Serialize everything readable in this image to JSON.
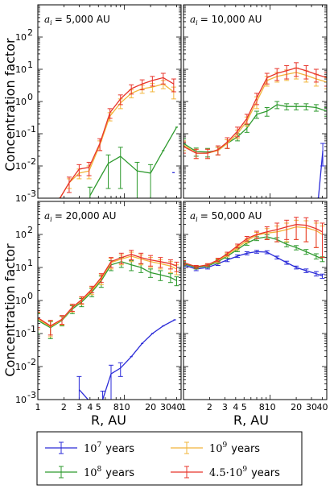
{
  "figure": {
    "ylabel": "Concentration factor",
    "xlabel": "R, AU"
  },
  "legend": {
    "placement": "bottom",
    "entries": [
      {
        "mantissa": "",
        "exponent": "7",
        "suffix": "years",
        "color": "#2b2bd8"
      },
      {
        "mantissa": "",
        "exponent": "9",
        "suffix": "years",
        "color": "#f2b53a"
      },
      {
        "mantissa": "",
        "exponent": "8",
        "suffix": "years",
        "color": "#2e9a2e"
      },
      {
        "mantissa": "4.5·",
        "exponent": "9",
        "suffix": "years",
        "color": "#e8342a"
      }
    ]
  },
  "colors": {
    "1e7": "#2b2bd8",
    "1e8": "#2e9a2e",
    "1e9": "#f2b53a",
    "4.5e9": "#e8342a"
  },
  "chart_data": [
    {
      "type": "line",
      "panel_label": "= 5,000 AU",
      "xscale": "log",
      "yscale": "log",
      "xlim": [
        1,
        45
      ],
      "ylim": [
        0.001,
        1000
      ],
      "xticks": [],
      "yticks": [
        "10^-3",
        "10^-2",
        "10^-1",
        "10^0",
        "10^1",
        "10^2"
      ],
      "ylabel": "Concentration factor",
      "xlabel": "",
      "series": [
        {
          "name": "10^7 years",
          "color": "#2b2bd8",
          "x": [
            36.8
          ],
          "y": [
            0.0062
          ],
          "err": [
            0.0
          ]
        },
        {
          "name": "10^8 years",
          "color": "#2e9a2e",
          "x": [
            4.0,
            6.5,
            9.0,
            14.0,
            20.0,
            28.0,
            40.0
          ],
          "y": [
            0.0012,
            0.012,
            0.02,
            0.007,
            0.006,
            0.03,
            0.16
          ],
          "err": [
            0.001,
            0.01,
            0.018,
            0.006,
            0.005,
            0.0,
            0.0
          ]
        },
        {
          "name": "10^9 years",
          "color": "#f2b53a",
          "x": [
            1.8,
            2.3,
            3.0,
            3.9,
            5.2,
            6.8,
            9.0,
            12.0,
            16.0,
            21.0,
            28.0,
            37.0
          ],
          "y": [
            0.001,
            0.003,
            0.006,
            0.007,
            0.045,
            0.35,
            0.9,
            1.8,
            2.5,
            2.8,
            3.5,
            2.0
          ],
          "err": [
            0.0,
            0.001,
            0.002,
            0.003,
            0.015,
            0.1,
            0.3,
            0.5,
            0.7,
            0.8,
            1.0,
            0.8
          ]
        },
        {
          "name": "4.5·10^9 years",
          "color": "#e8342a",
          "x": [
            1.8,
            2.3,
            3.0,
            3.9,
            5.2,
            6.8,
            9.0,
            12.0,
            16.0,
            21.0,
            28.0,
            37.0
          ],
          "y": [
            0.001,
            0.003,
            0.008,
            0.009,
            0.05,
            0.45,
            1.2,
            2.5,
            3.5,
            4.5,
            5.5,
            3.5
          ],
          "err": [
            0.0,
            0.0015,
            0.003,
            0.004,
            0.02,
            0.15,
            0.4,
            0.8,
            1.2,
            1.5,
            2.0,
            1.5
          ]
        }
      ]
    },
    {
      "type": "line",
      "panel_label": "= 10,000 AU",
      "xscale": "log",
      "yscale": "log",
      "xlim": [
        1,
        45
      ],
      "ylim": [
        0.001,
        1000
      ],
      "xticks": [],
      "yticks": [],
      "ylabel": "",
      "xlabel": "",
      "series": [
        {
          "name": "10^7 years",
          "color": "#2b2bd8",
          "x": [
            36.0,
            40.5
          ],
          "y": [
            0.001,
            0.03
          ],
          "err": [
            0.0,
            0.02
          ]
        },
        {
          "name": "10^8 years",
          "color": "#2e9a2e",
          "x": [
            1.0,
            1.4,
            1.9,
            2.5,
            3.2,
            4.2,
            5.4,
            7.0,
            9.2,
            12.0,
            15.5,
            20.0,
            26.0,
            34.0,
            45.0
          ],
          "y": [
            0.05,
            0.028,
            0.027,
            0.03,
            0.05,
            0.08,
            0.15,
            0.4,
            0.5,
            0.8,
            0.7,
            0.7,
            0.7,
            0.65,
            0.5
          ],
          "err": [
            0.02,
            0.008,
            0.008,
            0.008,
            0.015,
            0.02,
            0.04,
            0.1,
            0.15,
            0.2,
            0.15,
            0.15,
            0.15,
            0.15,
            0.15
          ]
        },
        {
          "name": "10^9 years",
          "color": "#f2b53a",
          "x": [
            1.0,
            1.4,
            1.9,
            2.5,
            3.2,
            4.2,
            5.4,
            7.0,
            9.2,
            12.0,
            15.5,
            20.0,
            26.0,
            34.0,
            45.0
          ],
          "y": [
            0.045,
            0.025,
            0.025,
            0.03,
            0.05,
            0.1,
            0.25,
            1.0,
            4.5,
            6.0,
            7.0,
            8.0,
            6.5,
            5.0,
            4.0
          ],
          "err": [
            0.015,
            0.008,
            0.008,
            0.008,
            0.015,
            0.03,
            0.08,
            0.4,
            1.5,
            2.0,
            2.5,
            3.0,
            2.5,
            2.0,
            1.5
          ]
        },
        {
          "name": "4.5·10^9 years",
          "color": "#e8342a",
          "x": [
            1.0,
            1.4,
            1.9,
            2.5,
            3.2,
            4.2,
            5.4,
            7.0,
            9.2,
            12.0,
            15.5,
            20.0,
            26.0,
            34.0,
            45.0
          ],
          "y": [
            0.04,
            0.025,
            0.025,
            0.032,
            0.055,
            0.12,
            0.3,
            1.3,
            5.5,
            7.5,
            9.0,
            11.0,
            9.0,
            7.0,
            5.5
          ],
          "err": [
            0.015,
            0.008,
            0.008,
            0.01,
            0.02,
            0.04,
            0.1,
            0.5,
            2.0,
            3.0,
            4.0,
            5.0,
            4.0,
            3.0,
            2.5
          ]
        }
      ]
    },
    {
      "type": "line",
      "panel_label": "= 20,000 AU",
      "xscale": "log",
      "yscale": "log",
      "xlim": [
        1,
        45
      ],
      "ylim": [
        0.001,
        1000
      ],
      "xticks": [
        "1",
        "2",
        "3",
        "4",
        "5",
        "8",
        "10",
        "20",
        "30",
        "40"
      ],
      "yticks": [
        "10^-3",
        "10^-2",
        "10^-1",
        "10^0",
        "10^1",
        "10^2"
      ],
      "ylabel": "Concentration factor",
      "xlabel": "R, AU",
      "series": [
        {
          "name": "10^7 years",
          "color": "#2b2bd8",
          "x": [
            3.0,
            4.1,
            5.6,
            7.0,
            9.0,
            12.0,
            16.0,
            21.0,
            28.0,
            38.0
          ],
          "y": [
            0.002,
            0.0008,
            0.001,
            0.006,
            0.009,
            0.02,
            0.05,
            0.1,
            0.17,
            0.26
          ],
          "err": [
            0.003,
            0.0,
            0.0008,
            0.005,
            0.004,
            0.0,
            0.0,
            0.0,
            0.0,
            0.0
          ]
        },
        {
          "name": "10^8 years",
          "color": "#2e9a2e",
          "x": [
            1.0,
            1.4,
            1.9,
            2.5,
            3.2,
            4.2,
            5.4,
            7.0,
            9.2,
            12.0,
            15.5,
            20.0,
            26.0,
            34.0,
            40.0
          ],
          "y": [
            0.25,
            0.15,
            0.25,
            0.55,
            0.9,
            1.8,
            4.0,
            12.0,
            15.0,
            12.0,
            10.0,
            7.0,
            6.0,
            5.0,
            4.0
          ],
          "err": [
            0.15,
            0.08,
            0.08,
            0.15,
            0.25,
            0.5,
            1.5,
            4.0,
            5.0,
            4.0,
            3.0,
            2.0,
            2.0,
            1.5,
            1.2
          ]
        },
        {
          "name": "10^9 years",
          "color": "#f2b53a",
          "x": [
            1.0,
            1.4,
            1.9,
            2.5,
            3.2,
            4.2,
            5.4,
            7.0,
            9.2,
            12.0,
            15.5,
            20.0,
            26.0,
            34.0,
            40.0
          ],
          "y": [
            0.28,
            0.16,
            0.26,
            0.6,
            1.0,
            2.0,
            4.5,
            14.0,
            18.0,
            22.0,
            18.0,
            15.0,
            13.0,
            11.0,
            9.0
          ],
          "err": [
            0.15,
            0.08,
            0.08,
            0.15,
            0.25,
            0.5,
            1.5,
            5.0,
            6.0,
            7.0,
            6.0,
            5.0,
            4.0,
            4.0,
            3.0
          ]
        },
        {
          "name": "4.5·10^9 years",
          "color": "#e8342a",
          "x": [
            1.0,
            1.4,
            1.9,
            2.5,
            3.2,
            4.2,
            5.4,
            7.0,
            9.2,
            12.0,
            15.5,
            20.0,
            26.0,
            34.0,
            40.0
          ],
          "y": [
            0.3,
            0.17,
            0.27,
            0.62,
            1.05,
            2.2,
            5.0,
            15.0,
            20.0,
            25.0,
            20.0,
            17.0,
            15.0,
            13.0,
            11.0
          ],
          "err": [
            0.15,
            0.08,
            0.08,
            0.15,
            0.25,
            0.5,
            1.5,
            5.0,
            7.0,
            8.0,
            7.0,
            6.0,
            5.0,
            4.0,
            3.5
          ]
        }
      ]
    },
    {
      "type": "line",
      "panel_label": "= 50,000 AU",
      "xscale": "log",
      "yscale": "log",
      "xlim": [
        1,
        45
      ],
      "ylim": [
        0.001,
        1000
      ],
      "xticks": [
        "1",
        "2",
        "3",
        "4",
        "5",
        "8",
        "10",
        "20",
        "30",
        "40"
      ],
      "yticks": [],
      "ylabel": "",
      "xlabel": "R, AU",
      "series": [
        {
          "name": "10^7 years",
          "color": "#2b2bd8",
          "x": [
            1.0,
            1.4,
            1.9,
            2.5,
            3.2,
            4.2,
            5.4,
            7.0,
            9.2,
            12.0,
            15.5,
            20.0,
            26.0,
            34.0,
            40.0
          ],
          "y": [
            12.0,
            9.0,
            10.0,
            13.0,
            17.0,
            22.0,
            27.0,
            30.0,
            29.0,
            20.0,
            14.0,
            10.0,
            8.0,
            6.5,
            5.5
          ],
          "err": [
            2.0,
            1.0,
            1.0,
            1.5,
            2.0,
            2.0,
            3.0,
            3.0,
            3.0,
            2.0,
            1.5,
            1.0,
            1.0,
            1.0,
            0.8
          ]
        },
        {
          "name": "10^8 years",
          "color": "#2e9a2e",
          "x": [
            1.0,
            1.4,
            1.9,
            2.5,
            3.2,
            4.2,
            5.4,
            7.0,
            9.2,
            12.0,
            15.5,
            20.0,
            26.0,
            34.0,
            40.0
          ],
          "y": [
            13.0,
            10.0,
            11.0,
            15.0,
            22.0,
            35.0,
            55.0,
            75.0,
            85.0,
            70.0,
            50.0,
            40.0,
            30.0,
            22.0,
            18.0
          ],
          "err": [
            2.0,
            1.0,
            1.0,
            2.0,
            3.0,
            5.0,
            8.0,
            10.0,
            12.0,
            10.0,
            8.0,
            6.0,
            5.0,
            4.0,
            3.0
          ]
        },
        {
          "name": "10^9 years",
          "color": "#f2b53a",
          "x": [
            1.0,
            1.4,
            1.9,
            2.5,
            3.2,
            4.2,
            5.4,
            7.0,
            9.2,
            12.0,
            15.5,
            20.0,
            26.0,
            34.0,
            40.0
          ],
          "y": [
            14.0,
            10.5,
            12.0,
            16.0,
            24.0,
            40.0,
            65.0,
            95.0,
            110.0,
            120.0,
            140.0,
            170.0,
            160.0,
            130.0,
            100.0
          ],
          "err": [
            2.0,
            1.0,
            1.0,
            2.0,
            3.0,
            6.0,
            10.0,
            20.0,
            40.0,
            60.0,
            80.0,
            100.0,
            100.0,
            90.0,
            80.0
          ]
        },
        {
          "name": "4.5·10^9 years",
          "color": "#e8342a",
          "x": [
            1.0,
            1.4,
            1.9,
            2.5,
            3.2,
            4.2,
            5.4,
            7.0,
            9.2,
            12.0,
            15.5,
            20.0,
            26.0,
            34.0,
            40.0
          ],
          "y": [
            14.0,
            10.5,
            12.0,
            17.0,
            26.0,
            45.0,
            75.0,
            100.0,
            120.0,
            140.0,
            170.0,
            200.0,
            190.0,
            150.0,
            120.0
          ],
          "err": [
            2.0,
            1.0,
            1.0,
            2.0,
            3.0,
            6.0,
            12.0,
            25.0,
            50.0,
            80.0,
            100.0,
            130.0,
            130.0,
            110.0,
            100.0
          ]
        }
      ]
    }
  ]
}
